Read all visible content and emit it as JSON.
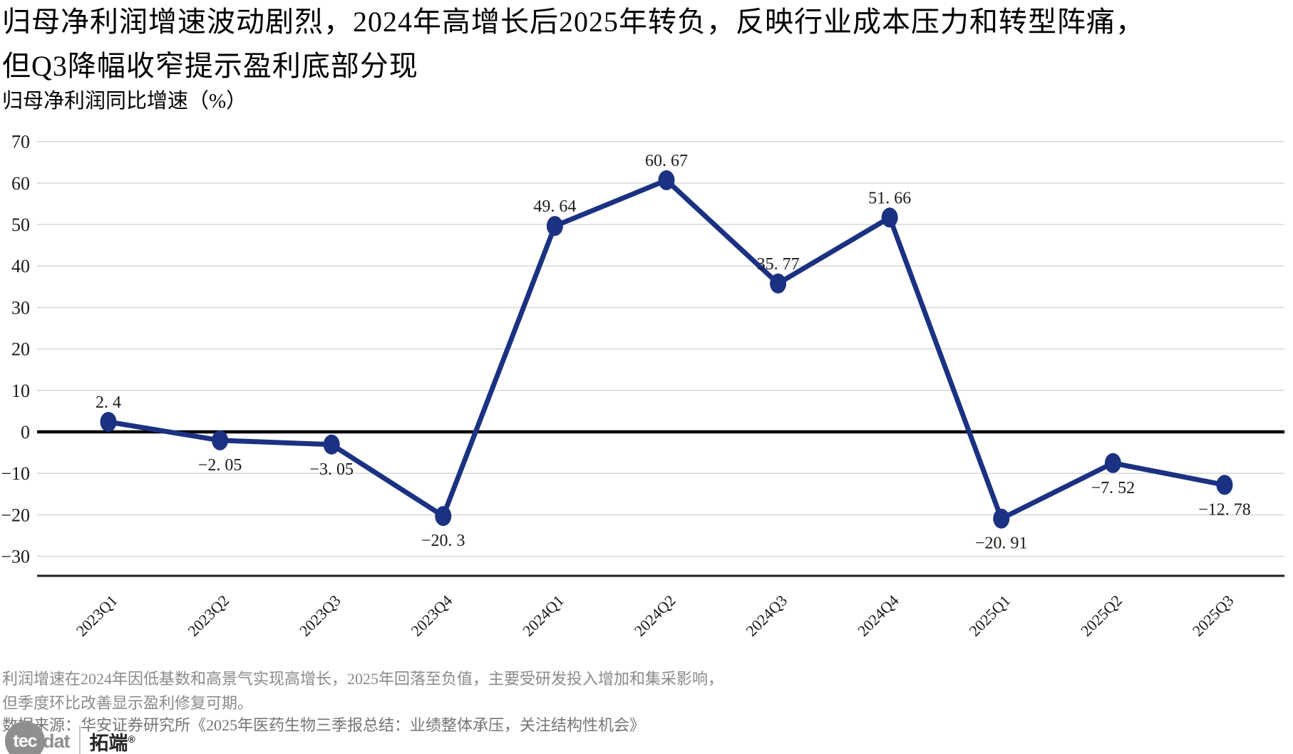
{
  "header": {
    "title_line1": "归母净利润增速波动剧烈，2024年高增长后2025年转负，反映行业成本压力和转型阵痛，",
    "title_line2": "但Q3降幅收窄提示盈利底部分现",
    "subtitle": "归母净利润同比增速（%）"
  },
  "chart_data": {
    "type": "line",
    "title": "归母净利润同比增速（%）",
    "categories": [
      "2023Q1",
      "2023Q2",
      "2023Q3",
      "2023Q4",
      "2024Q1",
      "2024Q2",
      "2024Q3",
      "2024Q4",
      "2025Q1",
      "2025Q2",
      "2025Q3"
    ],
    "series": [
      {
        "name": "归母净利润同比增速(%)",
        "values": [
          2.4,
          -2.05,
          -3.05,
          -20.3,
          49.64,
          60.67,
          35.77,
          51.66,
          -20.91,
          -7.52,
          -12.78
        ]
      }
    ],
    "point_labels": [
      "2. 4",
      "−2. 05",
      "−3. 05",
      "−20. 3",
      "49. 64",
      "60. 67",
      "35. 77",
      "51. 66",
      "−20. 91",
      "−7. 52",
      "−12. 78"
    ],
    "label_positions": [
      "above",
      "below",
      "below",
      "below",
      "above",
      "above",
      "above",
      "above",
      "below",
      "below",
      "below"
    ],
    "xlabel": "",
    "ylabel": "",
    "ylim": [
      -34.7,
      71.5
    ],
    "yticks": [
      70,
      60,
      50,
      40,
      30,
      20,
      10,
      0,
      -10,
      -20,
      -30
    ],
    "ytick_labels": [
      "70",
      "60",
      "50",
      "40",
      "30",
      "20",
      "10",
      "0",
      "−10",
      "−20",
      "−30"
    ],
    "grid": true,
    "legend": "none",
    "zero_line": true,
    "colors": {
      "line": "#1b3181",
      "marker": "#1b3181",
      "grid": "#d9d9d9",
      "zero_line": "#000000",
      "axis_line": "#1f1f1f",
      "tick_text": "#1a1a1a",
      "label_text": "#1a1a1a"
    }
  },
  "footer": {
    "note_line1": "利润增速在2024年因低基数和高景气实现高增长，2025年回落至负值，主要受研发投入增加和集采影响，",
    "note_line2": "但季度环比改善显示盈利修复可期。",
    "source": "数据来源：华安证券研究所《2025年医药生物三季报总结：业绩整体承压，关注结构性机会》",
    "logo": {
      "circle_text": "tec",
      "wordmark": "dat",
      "brand": "拓端",
      "registered": "®"
    }
  }
}
